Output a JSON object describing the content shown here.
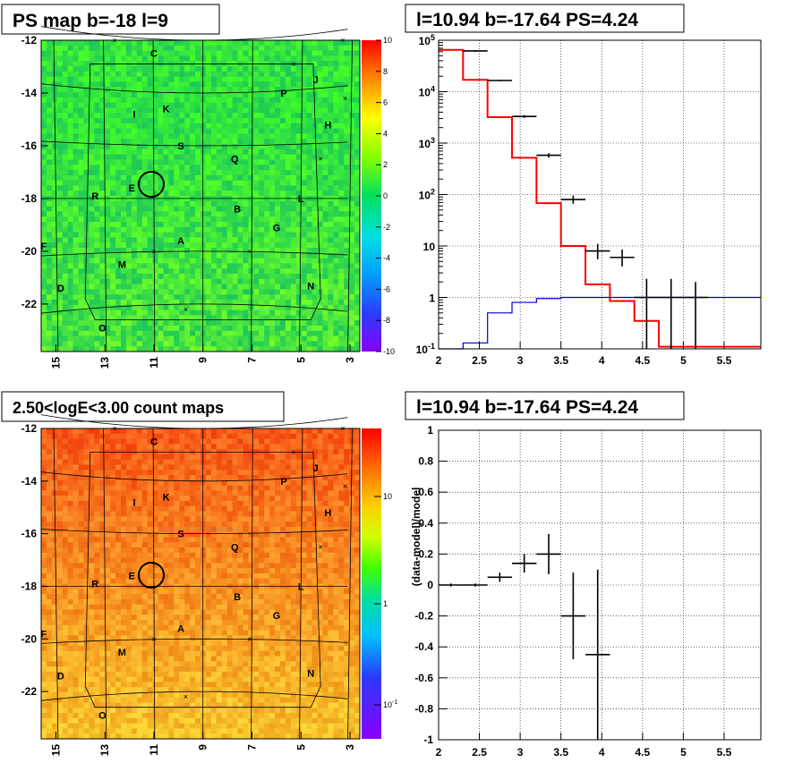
{
  "panels": {
    "top_left_title": "PS map b=-18 l=9",
    "top_right_title": "l=10.94 b=-17.64 PS=4.24",
    "bottom_left_title": "2.50<logE<3.00 count maps",
    "bottom_right_title": "l=10.94 b=-17.64 PS=4.24"
  },
  "chart_data": [
    {
      "id": "ps_map",
      "type": "heatmap",
      "title": "PS map b=-18 l=9",
      "x_ticks": [
        "15",
        "13",
        "11",
        "9",
        "7",
        "5",
        "3"
      ],
      "x_tick_values": [
        15,
        13,
        11,
        9,
        7,
        5,
        3
      ],
      "y_ticks": [
        "-12",
        "-14",
        "-16",
        "-18",
        "-20",
        "-22"
      ],
      "y_tick_values": [
        -12,
        -14,
        -16,
        -18,
        -20,
        -22
      ],
      "xlim": [
        15.6,
        2.6
      ],
      "ylim": [
        -23.8,
        -12
      ],
      "colorbar": {
        "ticks": [
          "10",
          "8",
          "6",
          "4",
          "2",
          "0",
          "-2",
          "-4",
          "-6",
          "-8",
          "-10"
        ],
        "range": [
          -10,
          10
        ]
      },
      "source_labels": [
        {
          "t": "C",
          "l": 11.0,
          "b": -12.5
        },
        {
          "t": "P",
          "l": 5.7,
          "b": -14.0
        },
        {
          "t": "J",
          "l": 4.4,
          "b": -13.5
        },
        {
          "t": "I",
          "l": 11.8,
          "b": -14.8
        },
        {
          "t": "K",
          "l": 10.5,
          "b": -14.6
        },
        {
          "t": "H",
          "l": 3.9,
          "b": -15.2
        },
        {
          "t": "S",
          "l": 9.9,
          "b": -16.0
        },
        {
          "t": "Q",
          "l": 7.7,
          "b": -16.5
        },
        {
          "t": "R",
          "l": 13.4,
          "b": -17.9
        },
        {
          "t": "E",
          "l": 11.9,
          "b": -17.6
        },
        {
          "t": "L",
          "l": 5.0,
          "b": -18.0
        },
        {
          "t": "B",
          "l": 7.6,
          "b": -18.4
        },
        {
          "t": "G",
          "l": 6.0,
          "b": -19.1
        },
        {
          "t": "A",
          "l": 9.9,
          "b": -19.6
        },
        {
          "t": "F",
          "l": 15.5,
          "b": -19.8
        },
        {
          "t": "M",
          "l": 12.3,
          "b": -20.5
        },
        {
          "t": "N",
          "l": 4.6,
          "b": -21.3
        },
        {
          "t": "D",
          "l": 14.8,
          "b": -21.4
        },
        {
          "t": "O",
          "l": 13.1,
          "b": -22.9
        }
      ]
    },
    {
      "id": "spectrum",
      "type": "line",
      "title": "l=10.94 b=-17.64 PS=4.24",
      "x_ticks": [
        "2",
        "2.5",
        "3",
        "3.5",
        "4",
        "4.5",
        "5",
        "5.5"
      ],
      "xlim": [
        2,
        5.95
      ],
      "y_scale": "log",
      "ylim": [
        0.1,
        100000
      ],
      "y_ticks": [
        "10^-1",
        "1",
        "10",
        "10^2",
        "10^3",
        "10^4",
        "10^5"
      ],
      "series": [
        {
          "role": "model_total",
          "color": "#ff0000",
          "edges": [
            2.0,
            2.3,
            2.6,
            2.9,
            3.2,
            3.5,
            3.8,
            4.1,
            4.4,
            4.7,
            5.0,
            5.3,
            5.6,
            5.95
          ],
          "values": [
            65000,
            17000,
            3200,
            520,
            68,
            10,
            1.8,
            0.85,
            0.35,
            0.11,
            0.11,
            0.11,
            0.11
          ]
        },
        {
          "role": "model_source",
          "color": "#0000cc",
          "edges": [
            2.0,
            2.3,
            2.6,
            2.9,
            3.2,
            3.5,
            3.8,
            4.1,
            4.4,
            4.7,
            5.0,
            5.3,
            5.6,
            5.95
          ],
          "values": [
            0.08,
            0.13,
            0.5,
            0.8,
            0.95,
            1.0,
            1.0,
            1.0,
            1.0,
            1.0,
            1.0,
            1.0,
            1.0
          ]
        },
        {
          "role": "data",
          "color": "#000000",
          "points": [
            {
              "x": 2.45,
              "xerr": 0.15,
              "y": 62000,
              "ylo": 60000,
              "yhi": 64000
            },
            {
              "x": 2.75,
              "xerr": 0.15,
              "y": 16500,
              "ylo": 16000,
              "yhi": 17000
            },
            {
              "x": 3.05,
              "xerr": 0.15,
              "y": 3300,
              "ylo": 3100,
              "yhi": 3500
            },
            {
              "x": 3.35,
              "xerr": 0.15,
              "y": 580,
              "ylo": 520,
              "yhi": 640
            },
            {
              "x": 3.65,
              "xerr": 0.15,
              "y": 80,
              "ylo": 66,
              "yhi": 95
            },
            {
              "x": 3.95,
              "xerr": 0.15,
              "y": 8,
              "ylo": 5.5,
              "yhi": 11
            },
            {
              "x": 4.25,
              "xerr": 0.15,
              "y": 6,
              "ylo": 4,
              "yhi": 8.5
            },
            {
              "x": 4.55,
              "xerr": 0.15,
              "y": 1,
              "ylo": 0.05,
              "yhi": 2.3
            },
            {
              "x": 4.85,
              "xerr": 0.15,
              "y": 1,
              "ylo": 0.05,
              "yhi": 2.3
            },
            {
              "x": 5.15,
              "xerr": 0.15,
              "y": 1,
              "ylo": 0.05,
              "yhi": 2.0
            }
          ]
        }
      ]
    },
    {
      "id": "count_map",
      "type": "heatmap",
      "title": "2.50<logE<3.00 count maps",
      "x_ticks": [
        "15",
        "13",
        "11",
        "9",
        "7",
        "5",
        "3"
      ],
      "y_ticks": [
        "-12",
        "-14",
        "-16",
        "-18",
        "-20",
        "-22"
      ],
      "colorbar": {
        "scale": "log",
        "ticks": [
          "10",
          "1",
          "10^-1"
        ]
      }
    },
    {
      "id": "residuals",
      "type": "scatter",
      "title": "l=10.94 b=-17.64 PS=4.24",
      "ylabel": "(data-model)/model",
      "x_ticks": [
        "2",
        "2.5",
        "3",
        "3.5",
        "4",
        "4.5",
        "5",
        "5.5"
      ],
      "y_ticks": [
        "-1",
        "-0.8",
        "-0.6",
        "-0.4",
        "-0.2",
        "0",
        "0.2",
        "0.4",
        "0.6",
        "0.8",
        "1"
      ],
      "xlim": [
        2,
        5.95
      ],
      "ylim": [
        -1,
        1
      ],
      "points": [
        {
          "x": 2.15,
          "xerr": 0.15,
          "y": 0.0,
          "yerr": 0.01
        },
        {
          "x": 2.45,
          "xerr": 0.15,
          "y": 0.0,
          "yerr": 0.01
        },
        {
          "x": 2.75,
          "xerr": 0.15,
          "y": 0.05,
          "yerr": 0.03
        },
        {
          "x": 3.05,
          "xerr": 0.15,
          "y": 0.14,
          "yerr": 0.06
        },
        {
          "x": 3.35,
          "xerr": 0.15,
          "y": 0.2,
          "yerr": 0.13
        },
        {
          "x": 3.65,
          "xerr": 0.15,
          "y": -0.2,
          "yerr": 0.28
        },
        {
          "x": 3.95,
          "xerr": 0.15,
          "y": -0.45,
          "yerr": 0.55
        }
      ]
    }
  ]
}
